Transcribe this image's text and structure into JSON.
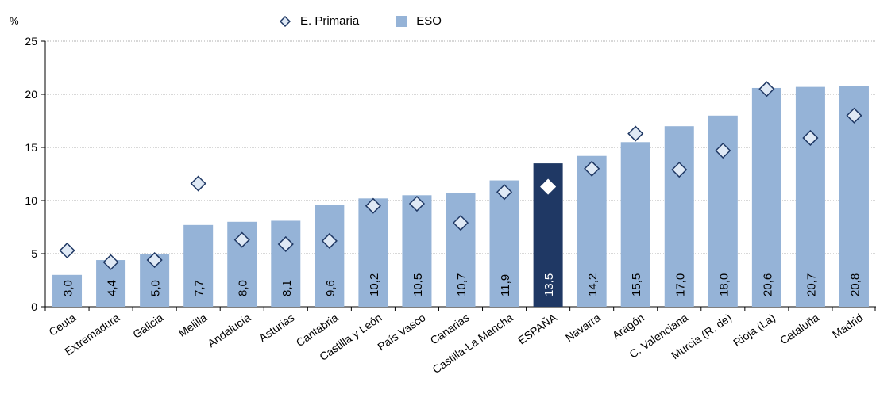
{
  "chart_data": {
    "type": "bar",
    "y_unit": "%",
    "ylim": [
      0,
      25
    ],
    "yticks": [
      "0",
      "5",
      "10",
      "15",
      "20",
      "25"
    ],
    "grid": true,
    "legend_position": "top",
    "categories": [
      "Ceuta",
      "Extremadura",
      "Galicia",
      "Melilla",
      "Andalucía",
      "Asturias",
      "Cantabria",
      "Castilla y León",
      "País Vasco",
      "Canarias",
      "Castilla-La Mancha",
      "ESPAÑA",
      "Navarra",
      "Aragón",
      "C. Valenciana",
      "Murcia (R. de)",
      "Rioja (La)",
      "Cataluña",
      "Madrid"
    ],
    "highlight_category": "ESPAÑA",
    "series": [
      {
        "name": "ESO",
        "kind": "bar",
        "color": "#95b3d7",
        "highlight_color": "#1f3864",
        "values": [
          3.0,
          4.4,
          5.0,
          7.7,
          8.0,
          8.1,
          9.6,
          10.2,
          10.5,
          10.7,
          11.9,
          13.5,
          14.2,
          15.5,
          17.0,
          18.0,
          20.6,
          20.7,
          20.8
        ],
        "labels": [
          "3,0",
          "4,4",
          "5,0",
          "7,7",
          "8,0",
          "8,1",
          "9,6",
          "10,2",
          "10,5",
          "10,7",
          "11,9",
          "13,5",
          "14,2",
          "15,5",
          "17,0",
          "18,0",
          "20,6",
          "20,7",
          "20,8"
        ]
      },
      {
        "name": "E. Primaria",
        "kind": "marker-diamond",
        "fill": "#dfe9f5",
        "stroke": "#1f3864",
        "values": [
          5.3,
          4.2,
          4.4,
          11.6,
          6.3,
          5.9,
          6.2,
          9.5,
          9.7,
          7.9,
          10.8,
          11.3,
          13.0,
          16.3,
          12.9,
          14.7,
          20.5,
          15.9,
          18.0
        ]
      }
    ]
  }
}
